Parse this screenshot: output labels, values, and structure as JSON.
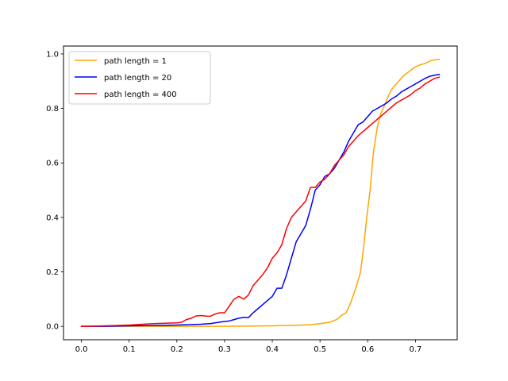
{
  "chart_data": {
    "type": "line",
    "title": "",
    "xlabel": "",
    "ylabel": "",
    "xlim": [
      -0.0375,
      0.7875
    ],
    "ylim": [
      -0.049,
      1.029
    ],
    "grid": false,
    "legend_position": "upper-left",
    "xticks": [
      "0.0",
      "0.1",
      "0.2",
      "0.3",
      "0.4",
      "0.5",
      "0.6",
      "0.7"
    ],
    "yticks": [
      "0.0",
      "0.2",
      "0.4",
      "0.6",
      "0.8",
      "1.0"
    ],
    "series": [
      {
        "name": "path length = 1",
        "color": "#ffa500",
        "x": [
          0.0,
          0.1,
          0.2,
          0.3,
          0.4,
          0.45,
          0.48,
          0.5,
          0.52,
          0.535,
          0.545,
          0.555,
          0.565,
          0.575,
          0.585,
          0.592,
          0.598,
          0.605,
          0.612,
          0.62,
          0.627,
          0.635,
          0.642,
          0.65,
          0.66,
          0.675,
          0.69,
          0.7,
          0.71,
          0.72,
          0.735,
          0.75
        ],
        "y": [
          0.0,
          0.0,
          0.0,
          0.0,
          0.002,
          0.004,
          0.006,
          0.01,
          0.015,
          0.025,
          0.04,
          0.05,
          0.09,
          0.14,
          0.2,
          0.3,
          0.4,
          0.5,
          0.64,
          0.73,
          0.78,
          0.81,
          0.84,
          0.87,
          0.89,
          0.92,
          0.94,
          0.953,
          0.96,
          0.965,
          0.977,
          0.98
        ]
      },
      {
        "name": "path length = 20",
        "color": "#0000ff",
        "x": [
          0.0,
          0.05,
          0.1,
          0.15,
          0.2,
          0.25,
          0.27,
          0.28,
          0.3,
          0.31,
          0.32,
          0.33,
          0.34,
          0.35,
          0.36,
          0.37,
          0.38,
          0.39,
          0.4,
          0.41,
          0.42,
          0.43,
          0.44,
          0.45,
          0.46,
          0.47,
          0.48,
          0.49,
          0.5,
          0.51,
          0.52,
          0.53,
          0.54,
          0.55,
          0.56,
          0.57,
          0.58,
          0.59,
          0.6,
          0.61,
          0.62,
          0.63,
          0.64,
          0.65,
          0.66,
          0.67,
          0.68,
          0.69,
          0.7,
          0.71,
          0.72,
          0.73,
          0.74,
          0.75
        ],
        "y": [
          0.0,
          0.0,
          0.002,
          0.003,
          0.005,
          0.008,
          0.01,
          0.013,
          0.018,
          0.02,
          0.025,
          0.03,
          0.033,
          0.032,
          0.05,
          0.065,
          0.08,
          0.095,
          0.11,
          0.14,
          0.14,
          0.19,
          0.25,
          0.31,
          0.34,
          0.37,
          0.43,
          0.5,
          0.52,
          0.55,
          0.56,
          0.58,
          0.61,
          0.64,
          0.68,
          0.71,
          0.74,
          0.75,
          0.77,
          0.79,
          0.8,
          0.81,
          0.82,
          0.835,
          0.845,
          0.86,
          0.87,
          0.88,
          0.89,
          0.9,
          0.91,
          0.918,
          0.922,
          0.925
        ]
      },
      {
        "name": "path length = 400",
        "color": "#ff0000",
        "x": [
          0.0,
          0.05,
          0.1,
          0.15,
          0.2,
          0.21,
          0.22,
          0.23,
          0.24,
          0.25,
          0.26,
          0.27,
          0.28,
          0.29,
          0.3,
          0.31,
          0.32,
          0.33,
          0.34,
          0.35,
          0.36,
          0.37,
          0.38,
          0.39,
          0.4,
          0.41,
          0.42,
          0.43,
          0.44,
          0.45,
          0.46,
          0.47,
          0.48,
          0.49,
          0.5,
          0.51,
          0.52,
          0.53,
          0.54,
          0.55,
          0.56,
          0.57,
          0.58,
          0.59,
          0.6,
          0.61,
          0.62,
          0.63,
          0.64,
          0.65,
          0.66,
          0.67,
          0.68,
          0.69,
          0.7,
          0.71,
          0.72,
          0.73,
          0.74,
          0.75
        ],
        "y": [
          0.0,
          0.002,
          0.005,
          0.01,
          0.013,
          0.015,
          0.025,
          0.03,
          0.038,
          0.04,
          0.038,
          0.037,
          0.045,
          0.05,
          0.05,
          0.075,
          0.1,
          0.11,
          0.1,
          0.115,
          0.15,
          0.17,
          0.19,
          0.215,
          0.25,
          0.27,
          0.3,
          0.36,
          0.4,
          0.42,
          0.44,
          0.46,
          0.51,
          0.51,
          0.53,
          0.54,
          0.56,
          0.59,
          0.61,
          0.63,
          0.66,
          0.68,
          0.7,
          0.715,
          0.73,
          0.745,
          0.76,
          0.775,
          0.79,
          0.805,
          0.82,
          0.83,
          0.84,
          0.85,
          0.865,
          0.875,
          0.89,
          0.9,
          0.91,
          0.915
        ]
      }
    ]
  }
}
